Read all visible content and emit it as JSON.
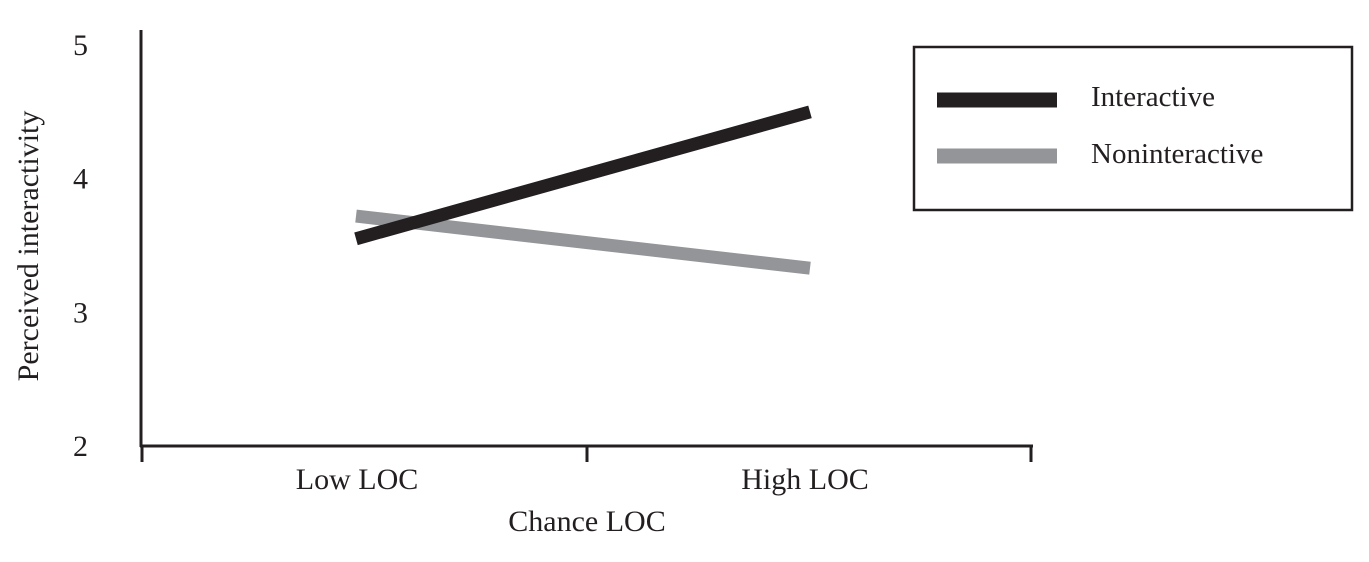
{
  "chart_data": {
    "type": "line",
    "title": "",
    "xlabel": "Chance LOC",
    "ylabel": "Perceived interactivity",
    "categories": [
      "Low LOC",
      "High LOC"
    ],
    "ylim": [
      2,
      5
    ],
    "yticks": [
      "2",
      "3",
      "4",
      "5"
    ],
    "grid": false,
    "legend_position": "top-right",
    "series": [
      {
        "name": "Interactive",
        "values": [
          3.55,
          4.5
        ],
        "color": "#231f20"
      },
      {
        "name": "Noninteractive",
        "values": [
          3.72,
          3.33
        ],
        "color": "#939598"
      }
    ]
  }
}
